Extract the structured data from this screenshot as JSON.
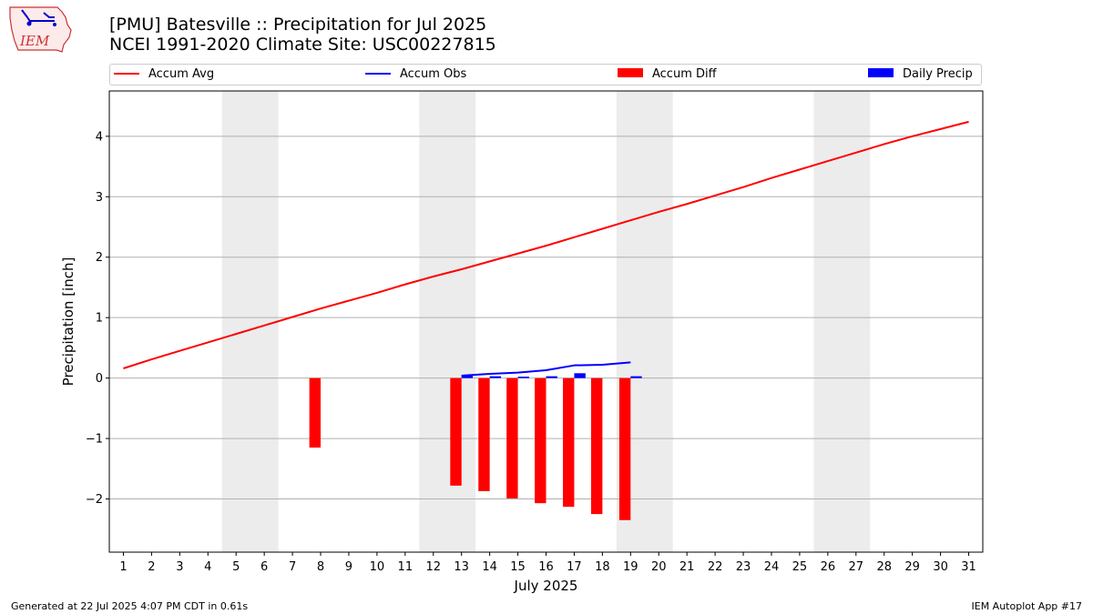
{
  "logo": {
    "text": "IEM"
  },
  "title": {
    "line1": "[PMU] Batesville :: Precipitation for Jul 2025",
    "line2": "NCEI 1991-2020 Climate Site: USC00227815"
  },
  "legend": [
    {
      "label": "Accum Avg",
      "color": "#ff0000",
      "kind": "line"
    },
    {
      "label": "Accum Obs",
      "color": "#0000ff",
      "kind": "line"
    },
    {
      "label": "Accum Diff",
      "color": "#ff0000",
      "kind": "rect"
    },
    {
      "label": "Daily Precip",
      "color": "#0000ff",
      "kind": "rect"
    }
  ],
  "chart_data": {
    "type": "bar",
    "xlabel": "July 2025",
    "ylabel": "Precipitation [inch]",
    "x": [
      1,
      2,
      3,
      4,
      5,
      6,
      7,
      8,
      9,
      10,
      11,
      12,
      13,
      14,
      15,
      16,
      17,
      18,
      19,
      20,
      21,
      22,
      23,
      24,
      25,
      26,
      27,
      28,
      29,
      30,
      31
    ],
    "xlim": [
      0.5,
      31.5
    ],
    "ylim": [
      -2.88,
      4.75
    ],
    "yticks": [
      -2,
      -1,
      0,
      1,
      2,
      3,
      4
    ],
    "ytick_labels": [
      "−2",
      "−1",
      "0",
      "1",
      "2",
      "3",
      "4"
    ],
    "grid": "horizontal",
    "weekend_shading": [
      [
        4.5,
        6.5
      ],
      [
        11.5,
        13.5
      ],
      [
        18.5,
        20.5
      ],
      [
        25.5,
        27.5
      ]
    ],
    "series": [
      {
        "name": "Accum Avg",
        "type": "line",
        "color": "#ff0000",
        "x": [
          1,
          2,
          3,
          4,
          5,
          6,
          7,
          8,
          9,
          10,
          11,
          12,
          13,
          14,
          15,
          16,
          17,
          18,
          19,
          20,
          21,
          22,
          23,
          24,
          25,
          26,
          27,
          28,
          29,
          30,
          31
        ],
        "values": [
          0.16,
          0.31,
          0.45,
          0.59,
          0.73,
          0.87,
          1.01,
          1.15,
          1.28,
          1.41,
          1.55,
          1.68,
          1.8,
          1.93,
          2.06,
          2.19,
          2.33,
          2.47,
          2.61,
          2.75,
          2.88,
          3.02,
          3.16,
          3.31,
          3.45,
          3.59,
          3.73,
          3.87,
          4.0,
          4.12,
          4.24
        ]
      },
      {
        "name": "Accum Obs",
        "type": "line",
        "color": "#0000ff",
        "x": [
          13,
          14,
          15,
          16,
          17,
          18,
          19
        ],
        "values": [
          0.04,
          0.07,
          0.09,
          0.13,
          0.21,
          0.22,
          0.26
        ]
      },
      {
        "name": "Accum Diff",
        "type": "bar",
        "color": "#ff0000",
        "x": [
          8,
          13,
          14,
          15,
          16,
          17,
          18,
          19
        ],
        "values": [
          -1.15,
          -1.78,
          -1.87,
          -1.99,
          -2.07,
          -2.13,
          -2.25,
          -2.35
        ]
      },
      {
        "name": "Daily Precip",
        "type": "bar",
        "color": "#0000ff",
        "x": [
          13,
          14,
          15,
          16,
          17,
          19
        ],
        "values": [
          0.04,
          0.03,
          0.02,
          0.03,
          0.08,
          0.03
        ]
      }
    ]
  },
  "footer": {
    "left": "Generated at 22 Jul 2025 4:07 PM CDT in 0.61s",
    "right": "IEM Autoplot App #17"
  }
}
